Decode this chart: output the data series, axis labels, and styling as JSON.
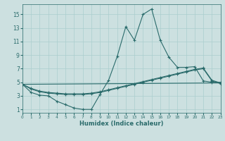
{
  "xlabel": "Humidex (Indice chaleur)",
  "ylabel": "",
  "xlim": [
    0,
    23
  ],
  "ylim": [
    0.5,
    16.5
  ],
  "xticks": [
    0,
    1,
    2,
    3,
    4,
    5,
    6,
    7,
    8,
    9,
    10,
    11,
    12,
    13,
    14,
    15,
    16,
    17,
    18,
    19,
    20,
    21,
    22,
    23
  ],
  "yticks": [
    1,
    3,
    5,
    7,
    9,
    11,
    13,
    15
  ],
  "bg_color": "#cce0e0",
  "line_color": "#2a6b6b",
  "grid_color": "#aacece",
  "line1_x": [
    0,
    1,
    2,
    3,
    4,
    5,
    6,
    7,
    8,
    9,
    10,
    11,
    12,
    13,
    14,
    15,
    16,
    17,
    18,
    19,
    20,
    21,
    22,
    23
  ],
  "line1_y": [
    4.7,
    3.5,
    3.1,
    3.0,
    2.2,
    1.7,
    1.2,
    1.0,
    1.0,
    3.2,
    5.3,
    8.8,
    13.2,
    11.2,
    15.0,
    15.8,
    11.2,
    8.7,
    7.2,
    7.2,
    7.3,
    5.2,
    5.0,
    5.0
  ],
  "line2_x": [
    0,
    1,
    2,
    3,
    4,
    5,
    6,
    7,
    8,
    9,
    10,
    11,
    12,
    13,
    14,
    15,
    16,
    17,
    18,
    19,
    20,
    21,
    22,
    23
  ],
  "line2_y": [
    4.7,
    4.0,
    3.6,
    3.4,
    3.3,
    3.2,
    3.2,
    3.2,
    3.3,
    3.5,
    3.8,
    4.1,
    4.4,
    4.7,
    5.0,
    5.3,
    5.6,
    5.9,
    6.2,
    6.5,
    6.8,
    7.0,
    5.2,
    4.8
  ],
  "line3_x": [
    0,
    1,
    2,
    3,
    4,
    5,
    6,
    7,
    8,
    9,
    10,
    11,
    12,
    13,
    14,
    15,
    16,
    17,
    18,
    19,
    20,
    21,
    22,
    23
  ],
  "line3_y": [
    4.7,
    4.1,
    3.7,
    3.5,
    3.4,
    3.3,
    3.3,
    3.3,
    3.4,
    3.6,
    3.9,
    4.2,
    4.5,
    4.8,
    5.1,
    5.4,
    5.7,
    6.0,
    6.3,
    6.6,
    6.9,
    7.1,
    5.3,
    4.9
  ],
  "line4_x": [
    0,
    23
  ],
  "line4_y": [
    4.7,
    4.9
  ]
}
